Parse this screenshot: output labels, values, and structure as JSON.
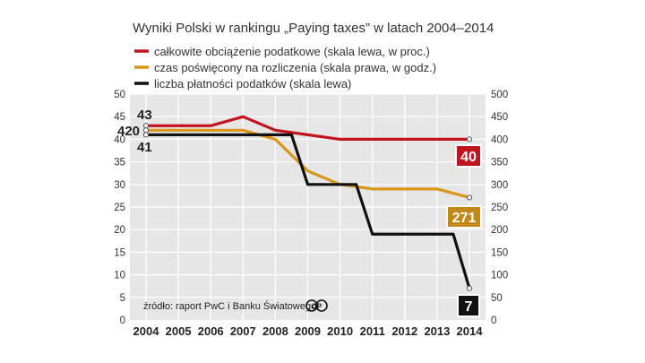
{
  "chart_data": {
    "type": "line",
    "title": "Wyniki Polski w rankingu „Paying taxes” w latach 2004–2014",
    "categories": [
      "2004",
      "2005",
      "2006",
      "2007",
      "2008",
      "2009",
      "2010",
      "2011",
      "2012",
      "2013",
      "2014"
    ],
    "y_left": {
      "min": 0,
      "max": 50,
      "ticks": [
        "0",
        "5",
        "10",
        "15",
        "20",
        "25",
        "30",
        "35",
        "40",
        "45",
        "50"
      ]
    },
    "y_right": {
      "min": 0,
      "max": 500,
      "ticks": [
        "0",
        "50",
        "100",
        "150",
        "200",
        "250",
        "300",
        "350",
        "400",
        "450",
        "500"
      ]
    },
    "series": [
      {
        "name": "całkowite obciążenie podatkowe (skala lewa, w proc.)",
        "color": "#c0141e",
        "axis": "left",
        "step": false,
        "values": [
          43,
          43,
          43,
          45,
          42,
          41,
          40,
          40,
          40,
          40,
          40
        ]
      },
      {
        "name": "czas poświęcony na rozliczenia (skala prawa, w godz.)",
        "color": "#d9961a",
        "axis": "right",
        "step": false,
        "values": [
          420,
          420,
          420,
          420,
          400,
          330,
          300,
          290,
          290,
          290,
          271
        ]
      },
      {
        "name": "liczba płatności podatków (skala lewa)",
        "color": "#111111",
        "axis": "left",
        "step": true,
        "values": [
          41,
          41,
          41,
          41,
          41,
          30,
          30,
          19,
          19,
          19,
          7
        ]
      }
    ],
    "start_labels": {
      "red": "43",
      "orange": "420",
      "black": "41"
    },
    "end_labels": {
      "red": "40",
      "orange": "271",
      "black": "7"
    },
    "source": "źródło: raport PwC i Banku Światowego",
    "logo_text": "CP"
  }
}
